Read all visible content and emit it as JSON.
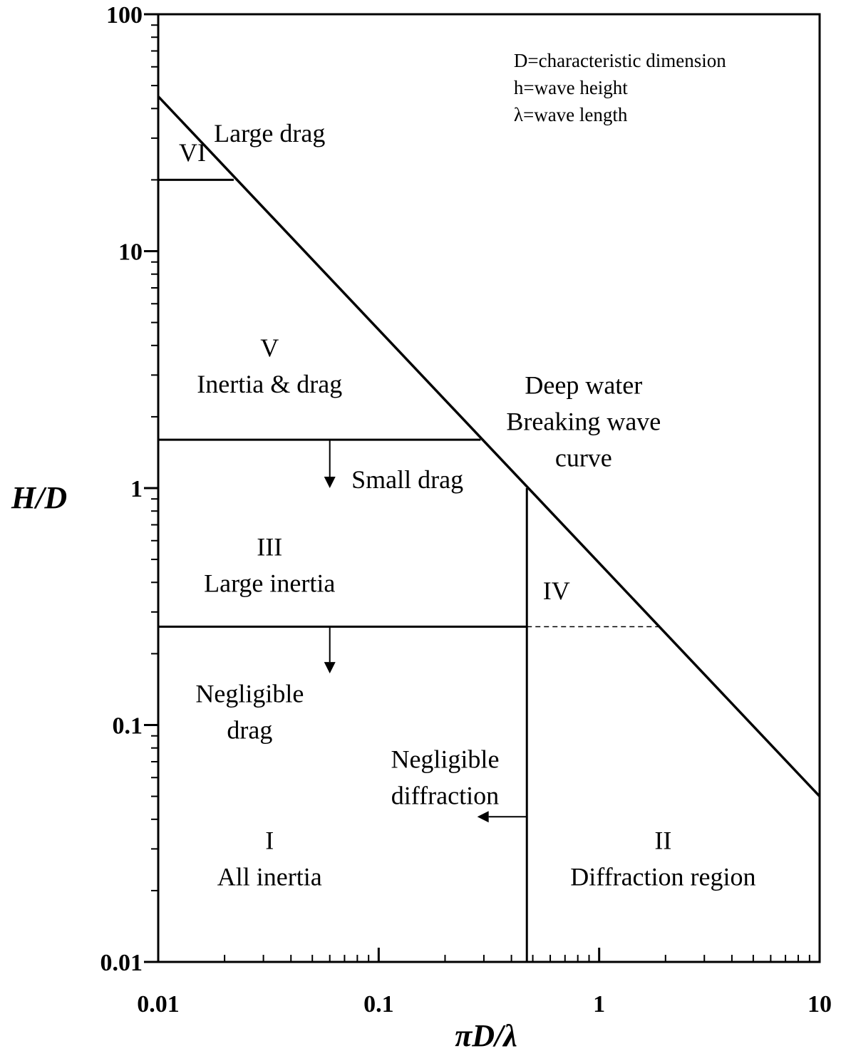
{
  "chart_data": {
    "type": "line",
    "xlabel": "πD/λ",
    "ylabel": "H/D",
    "x_scale": "log",
    "y_scale": "log",
    "xlim": [
      0.01,
      10
    ],
    "ylim": [
      0.01,
      100
    ],
    "x_ticks": [
      "0.01",
      "0.1",
      "1",
      "10"
    ],
    "y_ticks": [
      "0.01",
      "0.1",
      "1",
      "10",
      "100"
    ],
    "grid": false,
    "legend_lines": [
      "D=characteristic dimension",
      "h=wave height",
      "λ=wave length"
    ],
    "curve": {
      "x": [
        0.01,
        10
      ],
      "y": [
        45,
        0.05
      ]
    },
    "boundaries": [
      {
        "id": "vi",
        "style": "solid",
        "x": [
          0.01,
          0.022
        ],
        "y": [
          20,
          20
        ]
      },
      {
        "id": "v",
        "style": "solid",
        "x": [
          0.01,
          0.29
        ],
        "y": [
          1.6,
          1.6
        ]
      },
      {
        "id": "iii",
        "style": "solid",
        "x": [
          0.01,
          0.47
        ],
        "y": [
          0.26,
          0.26
        ]
      },
      {
        "id": "iv",
        "style": "dashed",
        "x": [
          0.47,
          1.9
        ],
        "y": [
          0.26,
          0.26
        ]
      },
      {
        "id": "diffraction",
        "style": "solid",
        "x": [
          0.47,
          0.47
        ],
        "y": [
          0.01,
          1.0
        ]
      }
    ],
    "arrows": [
      {
        "id": "small-drag",
        "x": [
          0.06,
          0.06
        ],
        "y": [
          1.6,
          1.0
        ]
      },
      {
        "id": "negligible-drag",
        "x": [
          0.06,
          0.06
        ],
        "y": [
          0.26,
          0.165
        ]
      },
      {
        "id": "negligible-diffraction",
        "x": [
          0.47,
          0.28
        ],
        "y": [
          0.041,
          0.041
        ]
      }
    ],
    "annotations": [
      {
        "id": "large-drag",
        "lines": [
          "Large drag"
        ],
        "x": 0.032,
        "y": 29
      },
      {
        "id": "vi",
        "lines": [
          "VI"
        ],
        "x": 0.0143,
        "y": 24
      },
      {
        "id": "v",
        "lines": [
          "V",
          "Inertia & drag"
        ],
        "x": 0.032,
        "y": 3.6
      },
      {
        "id": "deep-water",
        "lines": [
          "Deep water",
          "Breaking wave",
          "curve"
        ],
        "x": 0.85,
        "y": 2.5
      },
      {
        "id": "small-drag",
        "lines": [
          "Small drag"
        ],
        "x": 0.135,
        "y": 1.0
      },
      {
        "id": "iii",
        "lines": [
          "III",
          "Large inertia"
        ],
        "x": 0.032,
        "y": 0.52
      },
      {
        "id": "iv",
        "lines": [
          "IV"
        ],
        "x": 0.64,
        "y": 0.34
      },
      {
        "id": "negligible-drag",
        "lines": [
          "Negligible",
          "drag"
        ],
        "x": 0.026,
        "y": 0.125
      },
      {
        "id": "negligible-diffraction",
        "lines": [
          "Negligible",
          "diffraction"
        ],
        "x": 0.2,
        "y": 0.066
      },
      {
        "id": "i",
        "lines": [
          "I",
          "All inertia"
        ],
        "x": 0.032,
        "y": 0.03
      },
      {
        "id": "ii",
        "lines": [
          "II",
          "Diffraction region"
        ],
        "x": 1.95,
        "y": 0.03
      }
    ]
  }
}
